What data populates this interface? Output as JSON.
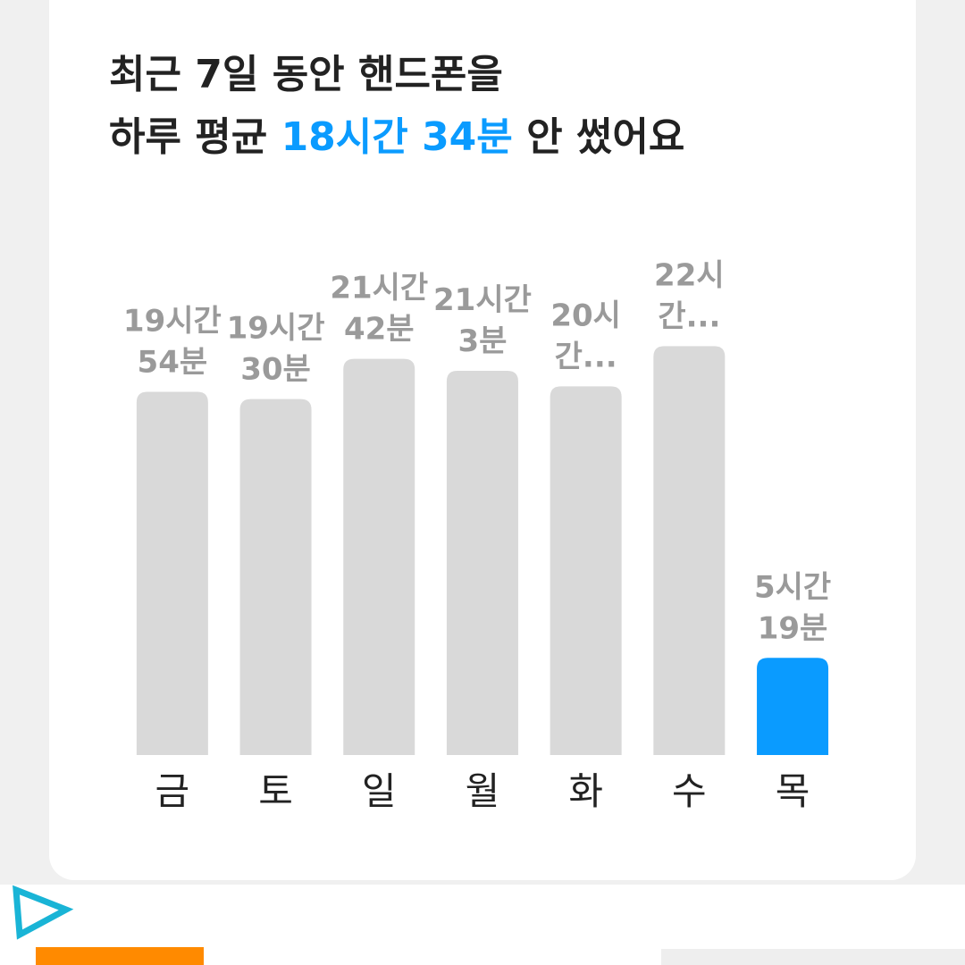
{
  "chart_data": {
    "type": "bar",
    "title": "최근 7일 동안 핸드폰을",
    "subtitle_parts": [
      "하루 평균 ",
      "18시간 34분",
      " 안 썼어요"
    ],
    "subtitle_highlight": 1,
    "highlight_color": "#0a9bff",
    "categories": [
      "금",
      "토",
      "일",
      "월",
      "화",
      "수",
      "목"
    ],
    "values": [
      19.9,
      19.5,
      21.7,
      21.05,
      20.2,
      22.4,
      5.32
    ],
    "value_labels": [
      "19시간 54분",
      "19시간 30분",
      "21시간 42분",
      "21시간 3분",
      "20시간...",
      "22시간...",
      "5시간 19분"
    ],
    "colors": [
      "#d9d9d9",
      "#d9d9d9",
      "#d9d9d9",
      "#d9d9d9",
      "#d9d9d9",
      "#d9d9d9",
      "#0a9bff"
    ],
    "ylim": [
      0,
      22.4
    ]
  }
}
